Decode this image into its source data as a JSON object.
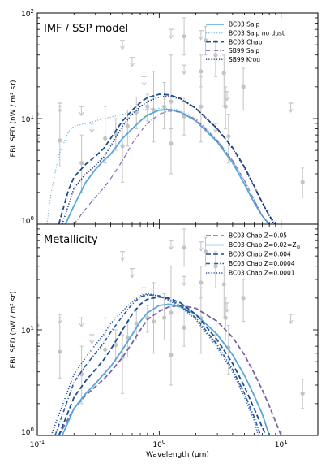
{
  "chart_data": [
    {
      "type": "line",
      "title": "IMF / SSP model",
      "xlabel": "",
      "ylabel": "EBL SED (nW / m² sr)",
      "xscale": "log",
      "yscale": "log",
      "xlim": [
        0.1,
        20
      ],
      "ylim": [
        1,
        100
      ],
      "x_tick_labels": [],
      "y_tick_labels": [
        "10^0",
        "10^1",
        "10^2"
      ],
      "legend_position": "top-right",
      "series": [
        {
          "name": "BC03 Salp",
          "color": "#56a8d8",
          "dash": "solid",
          "width": 1.8,
          "x": [
            0.17,
            0.2,
            0.25,
            0.3,
            0.35,
            0.4,
            0.5,
            0.6,
            0.7,
            0.8,
            1.0,
            1.2,
            1.5,
            2.0,
            3.0,
            4.0,
            5.0,
            6.0,
            7.0,
            8.0
          ],
          "y": [
            1.0,
            1.5,
            2.5,
            3.3,
            4.0,
            4.6,
            6.5,
            8.0,
            9.5,
            10.8,
            12.0,
            12.2,
            11.5,
            9.5,
            6.0,
            3.8,
            2.4,
            1.6,
            1.2,
            1.0
          ]
        },
        {
          "name": "BC03 Salp no dust",
          "color": "#56a8d8",
          "dash": "dot",
          "width": 1.0,
          "x": [
            0.12,
            0.13,
            0.15,
            0.18,
            0.2,
            0.25,
            0.3,
            0.35,
            0.4,
            0.5,
            0.6,
            0.7,
            0.8,
            1.0,
            1.2,
            1.5,
            2.0,
            3.0,
            4.0,
            5.0,
            6.0,
            7.0,
            7.8
          ],
          "y": [
            1.0,
            2.0,
            4.5,
            7.5,
            8.5,
            9.0,
            9.5,
            10.0,
            10.3,
            11.0,
            11.5,
            12.0,
            12.3,
            12.5,
            12.5,
            12.0,
            10.0,
            6.3,
            4.0,
            2.6,
            1.7,
            1.2,
            1.0
          ]
        },
        {
          "name": "BC03 Chab",
          "color": "#1f4e8c",
          "dash": "dash",
          "width": 1.8,
          "x": [
            0.15,
            0.18,
            0.2,
            0.25,
            0.3,
            0.35,
            0.4,
            0.5,
            0.6,
            0.7,
            0.8,
            1.0,
            1.2,
            1.5,
            2.0,
            3.0,
            4.0,
            5.0,
            6.0,
            7.0,
            8.0,
            9.0
          ],
          "y": [
            1.0,
            2.1,
            2.8,
            3.7,
            4.4,
            5.2,
            6.5,
            9.5,
            12.0,
            14.2,
            15.8,
            17.0,
            16.8,
            15.5,
            12.5,
            8.0,
            5.3,
            3.5,
            2.3,
            1.6,
            1.2,
            1.0
          ]
        },
        {
          "name": "SB99 Salp",
          "color": "#8a6ab0",
          "dash": "dashdot",
          "width": 1.2,
          "x": [
            0.2,
            0.25,
            0.3,
            0.35,
            0.4,
            0.5,
            0.6,
            0.7,
            0.8,
            1.0,
            1.2,
            1.5,
            2.0,
            3.0,
            4.0,
            5.0,
            6.0,
            7.0,
            8.0
          ],
          "y": [
            1.0,
            1.4,
            1.8,
            2.2,
            2.7,
            4.0,
            5.8,
            7.5,
            9.0,
            11.0,
            11.8,
            11.5,
            9.8,
            6.2,
            4.0,
            2.6,
            1.7,
            1.2,
            1.0
          ]
        },
        {
          "name": "SB99 Krou",
          "color": "#1c2f6e",
          "dash": "dot",
          "width": 1.6,
          "x": [
            0.16,
            0.2,
            0.25,
            0.3,
            0.35,
            0.4,
            0.5,
            0.6,
            0.7,
            0.8,
            1.0,
            1.2,
            1.5,
            2.0,
            3.0,
            4.0,
            5.0,
            6.0,
            7.0,
            8.0,
            8.8
          ],
          "y": [
            1.0,
            2.2,
            3.0,
            3.6,
            4.3,
            5.5,
            8.5,
            11.0,
            13.0,
            14.5,
            16.0,
            16.3,
            15.3,
            12.5,
            8.0,
            5.2,
            3.4,
            2.3,
            1.6,
            1.2,
            1.0
          ]
        }
      ]
    },
    {
      "type": "line",
      "title": "Metallicity",
      "xlabel": "Wavelength (μm)",
      "ylabel": "EBL SED (nW / m² sr)",
      "xscale": "log",
      "yscale": "log",
      "xlim": [
        0.1,
        20
      ],
      "ylim": [
        1,
        100
      ],
      "x_tick_labels": [
        "10^-1",
        "10^0",
        "10^1"
      ],
      "y_tick_labels": [
        "10^0",
        "10^1"
      ],
      "legend_position": "top-right",
      "series": [
        {
          "name": "BC03 Chab Z=0.05",
          "color": "#7c62a8",
          "dash": "dash",
          "width": 1.8,
          "x": [
            0.15,
            0.2,
            0.25,
            0.3,
            0.35,
            0.4,
            0.5,
            0.6,
            0.7,
            0.8,
            1.0,
            1.2,
            1.5,
            2.0,
            3.0,
            4.0,
            5.0,
            6.0,
            7.0,
            8.0,
            9.0,
            10.0
          ],
          "y": [
            1.0,
            1.8,
            2.4,
            2.9,
            3.4,
            4.0,
            5.5,
            7.5,
            10.0,
            12.5,
            15.0,
            16.5,
            17.0,
            16.0,
            12.0,
            8.5,
            5.8,
            3.9,
            2.7,
            1.9,
            1.35,
            1.0
          ]
        },
        {
          "name": "BC03 Chab Z=0.02=Z",
          "color": "#56a8d8",
          "dash": "solid",
          "width": 1.8,
          "x": [
            0.16,
            0.2,
            0.25,
            0.3,
            0.35,
            0.4,
            0.5,
            0.6,
            0.7,
            0.8,
            1.0,
            1.2,
            1.5,
            2.0,
            3.0,
            4.0,
            5.0,
            6.0,
            7.0,
            8.0
          ],
          "y": [
            1.0,
            1.8,
            2.5,
            3.1,
            3.8,
            4.5,
            6.5,
            9.0,
            12.0,
            14.5,
            17.0,
            17.5,
            16.5,
            14.0,
            9.0,
            5.8,
            3.7,
            2.4,
            1.6,
            1.0
          ]
        },
        {
          "name": "BC03 Chab Z=0.004",
          "color": "#1f4e8c",
          "dash": "dash",
          "width": 1.8,
          "x": [
            0.15,
            0.2,
            0.25,
            0.3,
            0.35,
            0.4,
            0.5,
            0.6,
            0.7,
            0.8,
            1.0,
            1.2,
            1.5,
            2.0,
            3.0,
            4.0,
            5.0,
            6.0,
            7.0,
            7.5
          ],
          "y": [
            1.0,
            2.3,
            3.3,
            4.2,
            5.2,
            6.5,
            10.0,
            14.0,
            17.5,
            19.5,
            20.5,
            20.0,
            18.0,
            14.0,
            8.0,
            4.8,
            2.9,
            1.8,
            1.2,
            1.0
          ]
        },
        {
          "name": "BC03 Chab Z=0.0004",
          "color": "#2a5aa6",
          "dash": "dashdot",
          "width": 1.6,
          "x": [
            0.14,
            0.2,
            0.25,
            0.3,
            0.35,
            0.4,
            0.5,
            0.6,
            0.7,
            0.8,
            1.0,
            1.2,
            1.5,
            2.0,
            3.0,
            4.0,
            5.0,
            6.0,
            6.8
          ],
          "y": [
            1.0,
            3.2,
            4.6,
            6.0,
            7.5,
            9.5,
            13.5,
            17.5,
            20.5,
            21.5,
            21.0,
            19.5,
            17.0,
            13.0,
            7.2,
            4.2,
            2.5,
            1.5,
            1.0
          ]
        },
        {
          "name": "BC03 Chab Z=0.0001",
          "color": "#2a5aa6",
          "dash": "dot",
          "width": 1.6,
          "x": [
            0.13,
            0.2,
            0.25,
            0.3,
            0.35,
            0.4,
            0.5,
            0.6,
            0.7,
            0.8,
            1.0,
            1.2,
            1.5,
            2.0,
            3.0,
            4.0,
            5.0,
            6.0,
            6.5
          ],
          "y": [
            1.0,
            3.8,
            5.5,
            7.2,
            9.0,
            11.5,
            15.0,
            18.5,
            21.0,
            22.0,
            21.0,
            19.0,
            16.5,
            12.5,
            6.8,
            4.0,
            2.3,
            1.4,
            1.0
          ]
        }
      ]
    }
  ],
  "observations": {
    "color": "#c4c4c4",
    "points": [
      {
        "x": 0.153,
        "y": 6.2,
        "lo": 3.5,
        "hi": 13
      },
      {
        "x": 0.231,
        "y": 3.8,
        "lo": 2.0,
        "hi": 7
      },
      {
        "x": 0.36,
        "y": 6.5,
        "lo": 3.8,
        "hi": 13
      },
      {
        "x": 0.44,
        "y": 7.2,
        "lo": 5.0,
        "hi": 10
      },
      {
        "x": 0.55,
        "y": 8.5,
        "lo": 5.5,
        "hi": 12
      },
      {
        "x": 0.65,
        "y": 11.5,
        "lo": 8.0,
        "hi": 16
      },
      {
        "x": 0.8,
        "y": 13,
        "lo": 9.5,
        "hi": 17
      },
      {
        "x": 0.9,
        "y": 12,
        "lo": 6.0,
        "hi": 28
      },
      {
        "x": 1.1,
        "y": 13,
        "lo": 8.0,
        "hi": 22
      },
      {
        "x": 1.25,
        "y": 14.5,
        "lo": 8.0,
        "hi": 40
      },
      {
        "x": 1.6,
        "y": 10.5,
        "lo": 7.0,
        "hi": 16
      },
      {
        "x": 2.2,
        "y": 13,
        "lo": 6.0,
        "hi": 25
      },
      {
        "x": 2.2,
        "y": 28,
        "lo": 20,
        "hi": 40
      },
      {
        "x": 3.4,
        "y": 27,
        "lo": 13,
        "hi": 40
      },
      {
        "x": 3.5,
        "y": 13,
        "lo": 8.0,
        "hi": 20
      },
      {
        "x": 4.9,
        "y": 20,
        "lo": 12,
        "hi": 30
      },
      {
        "x": 15,
        "y": 2.5,
        "lo": 1.8,
        "hi": 3.4
      },
      {
        "x": 1.6,
        "y": 60,
        "lo": 40,
        "hi": 90
      },
      {
        "x": 2.4,
        "y": 55,
        "lo": 40,
        "hi": 75
      },
      {
        "x": 2.9,
        "y": 40,
        "lo": 25,
        "hi": 55
      },
      {
        "x": 0.1,
        "y": 11,
        "lo": 9,
        "hi": 13
      },
      {
        "x": 0.5,
        "y": 5.5,
        "lo": 2.5,
        "hi": 9
      },
      {
        "x": 1.25,
        "y": 5.8,
        "lo": 3.0,
        "hi": 8
      },
      {
        "x": 3.7,
        "y": 6.8,
        "lo": 3.8,
        "hi": 11
      }
    ],
    "upper_limits": [
      {
        "x": 0.1,
        "y": 7.5
      },
      {
        "x": 0.153,
        "y": 14
      },
      {
        "x": 0.23,
        "y": 13
      },
      {
        "x": 0.28,
        "y": 9
      },
      {
        "x": 0.6,
        "y": 38
      },
      {
        "x": 0.5,
        "y": 55
      },
      {
        "x": 0.75,
        "y": 25
      },
      {
        "x": 1.25,
        "y": 70
      },
      {
        "x": 1.6,
        "y": 32
      },
      {
        "x": 2.2,
        "y": 68
      },
      {
        "x": 3.6,
        "y": 18
      },
      {
        "x": 12,
        "y": 14
      },
      {
        "x": 2.9,
        "y": 9
      }
    ]
  },
  "legend_extra": {
    "z_sun_symbol": "⊙"
  }
}
